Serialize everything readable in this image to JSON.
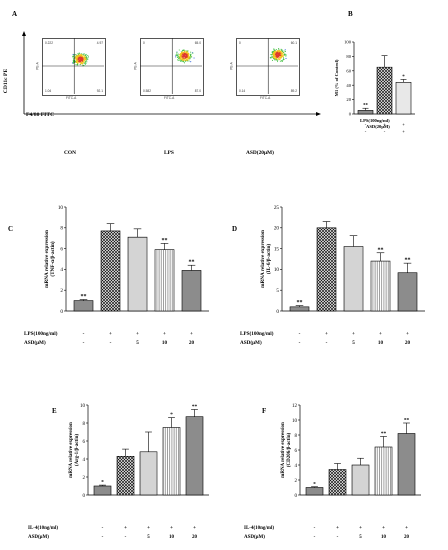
{
  "panels": {
    "A": {
      "letter": "A",
      "y_axis_label": "CD11c PE",
      "x_axis_label": "F4/80 FITC",
      "plots": [
        {
          "name": "CON",
          "q1": "0.222",
          "q2": "4.97",
          "q3": "92.1",
          "q4": "1.04",
          "x_tick": "FITC-A",
          "y_tick": "PE-A"
        },
        {
          "name": "LPS",
          "q1": "0",
          "q2": "65.0",
          "q3": "87.0",
          "q4": "0.582",
          "x_tick": "FITC-A",
          "y_tick": "PE-A"
        },
        {
          "name": "ASD(20μM)",
          "q1": "0",
          "q2": "60.1",
          "q3": "89.2",
          "q4": "0.14",
          "x_tick": "FITC-A",
          "y_tick": "PE-A"
        }
      ]
    },
    "B_letter": "B",
    "C_letter": "C",
    "D_letter": "D",
    "E_letter": "E",
    "F_letter": "F",
    "B_row_labels": [
      "LPS(100ng/ml)",
      "ASD(20μM)"
    ],
    "B_row_signs": [
      [
        "-",
        "+",
        "+"
      ],
      [
        "-",
        "-",
        "+"
      ]
    ],
    "C_row_labels": [
      "LPS(100ng/ml)",
      "ASD(μM)"
    ],
    "C_row_values": [
      [
        "-",
        "+",
        "+",
        "+",
        "+"
      ],
      [
        "-",
        "-",
        "5",
        "10",
        "20"
      ]
    ],
    "E_row_labels": [
      "IL-4(10ng/ml)",
      "ASD(μM)"
    ],
    "E_row_values": [
      [
        "-",
        "+",
        "+",
        "+",
        "+"
      ],
      [
        "-",
        "-",
        "5",
        "10",
        "20"
      ]
    ]
  },
  "chart_data": [
    {
      "panel": "B",
      "type": "bar",
      "ylabel": "M1 (% of Control)",
      "ylim": [
        0,
        100
      ],
      "yticks": [
        0,
        20,
        40,
        60,
        80,
        100
      ],
      "values": [
        5,
        65,
        44
      ],
      "errors": [
        3,
        16,
        4
      ],
      "fills": [
        "gray",
        "cross",
        "light"
      ],
      "significance": [
        "**",
        "",
        "*"
      ]
    },
    {
      "panel": "C",
      "type": "bar",
      "ylabel": "mRNA relative expression (TNF-α/β-actin)",
      "ylim": [
        0,
        10
      ],
      "yticks": [
        0,
        2,
        4,
        6,
        8,
        10
      ],
      "values": [
        1.0,
        7.7,
        7.1,
        5.9,
        3.9
      ],
      "errors": [
        0.1,
        0.7,
        0.8,
        0.6,
        0.5
      ],
      "fills": [
        "gray",
        "cross",
        "dots",
        "stripes",
        "gray"
      ],
      "significance": [
        "**",
        "",
        "",
        "**",
        "**"
      ]
    },
    {
      "panel": "D",
      "type": "bar",
      "ylabel": "mRNA relative expression (IL-6/β-actin)",
      "ylim": [
        0,
        25
      ],
      "yticks": [
        0,
        5,
        10,
        15,
        20,
        25
      ],
      "values": [
        1.0,
        20.0,
        15.5,
        12.0,
        9.2
      ],
      "errors": [
        0.3,
        1.5,
        2.6,
        2.0,
        2.3
      ],
      "fills": [
        "gray",
        "cross",
        "dots",
        "stripes",
        "gray"
      ],
      "significance": [
        "**",
        "",
        "",
        "**",
        "**"
      ]
    },
    {
      "panel": "E",
      "type": "bar",
      "ylabel": "mRNA relative expression (Arg-1/β-actin)",
      "ylim": [
        0,
        10
      ],
      "yticks": [
        0,
        2,
        4,
        6,
        8,
        10
      ],
      "values": [
        1.0,
        4.3,
        4.8,
        7.5,
        8.7
      ],
      "errors": [
        0.1,
        0.8,
        2.2,
        1.1,
        0.8
      ],
      "fills": [
        "gray",
        "cross",
        "dots",
        "stripes",
        "gray"
      ],
      "significance": [
        "*",
        "",
        "",
        "*",
        "**"
      ]
    },
    {
      "panel": "F",
      "type": "bar",
      "ylabel": "mRNA relative expression (CD206/β-actin)",
      "ylim": [
        0,
        12
      ],
      "yticks": [
        0,
        2,
        4,
        6,
        8,
        10,
        12
      ],
      "values": [
        1.0,
        3.4,
        4.0,
        6.4,
        8.2
      ],
      "errors": [
        0.1,
        0.8,
        0.9,
        1.4,
        1.4
      ],
      "fills": [
        "gray",
        "cross",
        "dots",
        "stripes",
        "gray"
      ],
      "significance": [
        "*",
        "",
        "",
        "**",
        "**"
      ]
    }
  ]
}
